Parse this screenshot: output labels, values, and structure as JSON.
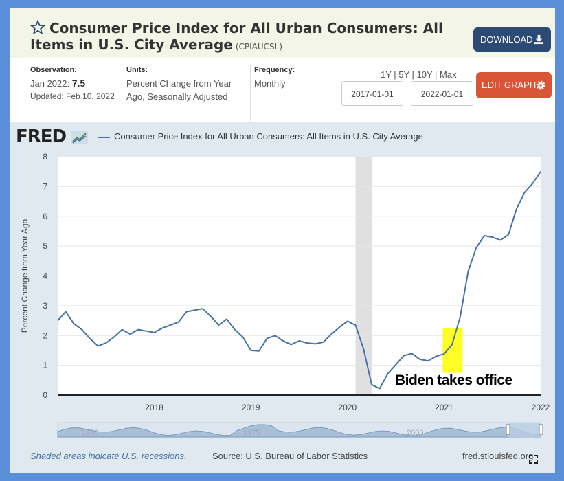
{
  "header": {
    "title": "Consumer Price Index for All Urban Consumers: All Items in U.S. City Average",
    "series_code": "(CPIAUCSL)",
    "download_label": "DOWNLOAD"
  },
  "meta": {
    "observation_label": "Observation:",
    "observation_date": "Jan 2022:",
    "observation_value": "7.5",
    "updated": "Updated: Feb 10, 2022",
    "units_label": "Units:",
    "units_value": "Percent Change from Year Ago, Seasonally Adjusted",
    "frequency_label": "Frequency:",
    "frequency_value": "Monthly"
  },
  "controls": {
    "range_links": "1Y | 5Y | 10Y | Max",
    "start_date": "2017-01-01",
    "end_date": "2022-01-01",
    "edit_label": "EDIT GRAPH"
  },
  "footer": {
    "recession_note": "Shaded areas indicate U.S. recessions.",
    "source": "Source: U.S. Bureau of Labor Statistics",
    "url": "fred.stlouisfed.org"
  },
  "brand": {
    "logo_text": "FRED",
    "accent": "#4572a7",
    "recession_shade": "#e0e0e0",
    "highlight": "#ffff00"
  },
  "chart_data": {
    "type": "line",
    "title": "",
    "legend_label": "Consumer Price Index for All Urban Consumers: All Items in U.S. City Average",
    "xlabel": "",
    "ylabel": "Percent Change from Year Ago",
    "ylim": [
      0,
      8
    ],
    "yticks": [
      "0",
      "1",
      "2",
      "3",
      "4",
      "5",
      "6",
      "7",
      "8"
    ],
    "xticks": [
      "2018",
      "2019",
      "2020",
      "2021",
      "2022"
    ],
    "grid": true,
    "legend_position": "top",
    "recession": {
      "start": "2020-02",
      "end": "2020-04"
    },
    "annotation": {
      "text": "Biden takes office",
      "highlight_date": "2021-01"
    },
    "navigator_labels": [
      "1950",
      "1975",
      "2000"
    ],
    "series": [
      {
        "name": "Consumer Price Index for All Urban Consumers: All Items in U.S. City Average",
        "x": [
          "2017-01",
          "2017-02",
          "2017-03",
          "2017-04",
          "2017-05",
          "2017-06",
          "2017-07",
          "2017-08",
          "2017-09",
          "2017-10",
          "2017-11",
          "2017-12",
          "2018-01",
          "2018-02",
          "2018-03",
          "2018-04",
          "2018-05",
          "2018-06",
          "2018-07",
          "2018-08",
          "2018-09",
          "2018-10",
          "2018-11",
          "2018-12",
          "2019-01",
          "2019-02",
          "2019-03",
          "2019-04",
          "2019-05",
          "2019-06",
          "2019-07",
          "2019-08",
          "2019-09",
          "2019-10",
          "2019-11",
          "2019-12",
          "2020-01",
          "2020-02",
          "2020-03",
          "2020-04",
          "2020-05",
          "2020-06",
          "2020-07",
          "2020-08",
          "2020-09",
          "2020-10",
          "2020-11",
          "2020-12",
          "2021-01",
          "2021-02",
          "2021-03",
          "2021-04",
          "2021-05",
          "2021-06",
          "2021-07",
          "2021-08",
          "2021-09",
          "2021-10",
          "2021-11",
          "2021-12",
          "2022-01"
        ],
        "values": [
          2.5,
          2.8,
          2.4,
          2.2,
          1.9,
          1.65,
          1.75,
          1.95,
          2.2,
          2.05,
          2.2,
          2.15,
          2.1,
          2.25,
          2.35,
          2.45,
          2.8,
          2.85,
          2.9,
          2.65,
          2.35,
          2.55,
          2.2,
          1.95,
          1.5,
          1.48,
          1.9,
          2.0,
          1.82,
          1.7,
          1.82,
          1.75,
          1.72,
          1.78,
          2.05,
          2.28,
          2.48,
          2.35,
          1.55,
          0.35,
          0.22,
          0.72,
          1.02,
          1.32,
          1.4,
          1.2,
          1.15,
          1.3,
          1.38,
          1.7,
          2.62,
          4.15,
          4.95,
          5.35,
          5.3,
          5.2,
          5.38,
          6.25,
          6.8,
          7.1,
          7.5
        ]
      }
    ]
  }
}
